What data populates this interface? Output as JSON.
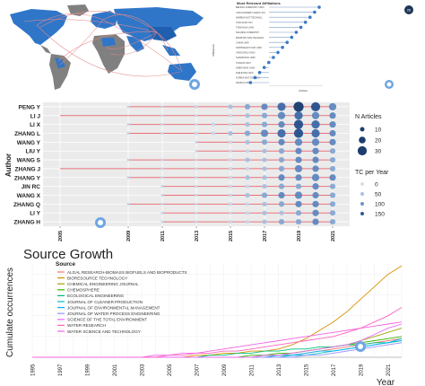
{
  "affiliations": {
    "title": "Most Relevant Affiliations",
    "ylabel": "Affiliations",
    "xlabel": "Articles",
    "badge": "26",
    "labels": [
      "BEIJING FORESTRY UNIV",
      "CHN ACADEMY AGRIC SCI",
      "HARBIN INST TECHNOL",
      "CHN ACAD SCI",
      "TSINGHUA UNIV",
      "NANJING FORESTRY",
      "MINISTRY ENV TECHNOL",
      "CHINA UNIV",
      "NORTHEAST FOR UNIV",
      "YANGZHOU UNIV",
      "SHANDONG UNIV",
      "TIANJIN UNIV",
      "SHENYANG UNIV",
      "ZHEJIANG UNIV",
      "KOREA INST ENV SCI",
      "NANKAI UNIV"
    ]
  },
  "chart_data": [
    {
      "type": "scatter",
      "title": "",
      "ylabel": "Author",
      "xlabel": "",
      "authors": [
        "PENG Y",
        "LI J",
        "LI X",
        "ZHANG L",
        "WANG Y",
        "LIU Y",
        "WANG S",
        "ZHANG J",
        "ZHANG Y",
        "JIN RC",
        "WANG X",
        "ZHANG Q",
        "LI Y",
        "ZHANG H"
      ],
      "x_ticks": [
        "2005",
        "2009",
        "2011",
        "2013",
        "2015",
        "2017",
        "2019",
        "2021"
      ],
      "xlim": [
        2004,
        2022
      ],
      "legend_size_title": "N Articles",
      "legend_size_values": [
        "10",
        "20",
        "30"
      ],
      "legend_color_title": "TC per Year",
      "legend_color_values": [
        "0",
        "50",
        "100",
        "150"
      ],
      "timeline_start": [
        2009,
        2005,
        2009,
        2009,
        2013,
        2013,
        2009,
        2005,
        2009,
        2011,
        2011,
        2009,
        2011,
        2011
      ],
      "points": [
        [
          [
            2009,
            2
          ],
          [
            2011,
            2
          ],
          [
            2013,
            3
          ],
          [
            2015,
            4
          ],
          [
            2016,
            5
          ],
          [
            2017,
            6
          ],
          [
            2018,
            8
          ],
          [
            2019,
            10
          ],
          [
            2020,
            9
          ],
          [
            2021,
            7
          ]
        ],
        [
          [
            2011,
            2
          ],
          [
            2013,
            2
          ],
          [
            2015,
            3
          ],
          [
            2016,
            4
          ],
          [
            2017,
            5
          ],
          [
            2018,
            7
          ],
          [
            2019,
            8
          ],
          [
            2020,
            7
          ],
          [
            2021,
            6
          ]
        ],
        [
          [
            2009,
            2
          ],
          [
            2011,
            2
          ],
          [
            2013,
            2
          ],
          [
            2014,
            3
          ],
          [
            2015,
            3
          ],
          [
            2016,
            4
          ],
          [
            2017,
            5
          ],
          [
            2018,
            6
          ],
          [
            2019,
            9
          ],
          [
            2020,
            8
          ],
          [
            2021,
            6
          ]
        ],
        [
          [
            2009,
            2
          ],
          [
            2011,
            2
          ],
          [
            2013,
            3
          ],
          [
            2014,
            3
          ],
          [
            2015,
            4
          ],
          [
            2016,
            5
          ],
          [
            2017,
            7
          ],
          [
            2018,
            8
          ],
          [
            2019,
            9
          ],
          [
            2020,
            8
          ],
          [
            2021,
            6
          ]
        ],
        [
          [
            2013,
            2
          ],
          [
            2015,
            3
          ],
          [
            2016,
            4
          ],
          [
            2017,
            5
          ],
          [
            2018,
            6
          ],
          [
            2019,
            7
          ],
          [
            2020,
            7
          ],
          [
            2021,
            6
          ]
        ],
        [
          [
            2013,
            2
          ],
          [
            2015,
            2
          ],
          [
            2016,
            3
          ],
          [
            2017,
            4
          ],
          [
            2018,
            5
          ],
          [
            2019,
            6
          ],
          [
            2020,
            6
          ],
          [
            2021,
            5
          ]
        ],
        [
          [
            2009,
            2
          ],
          [
            2011,
            2
          ],
          [
            2013,
            2
          ],
          [
            2015,
            3
          ],
          [
            2016,
            4
          ],
          [
            2017,
            4
          ],
          [
            2018,
            5
          ],
          [
            2019,
            6
          ],
          [
            2020,
            6
          ],
          [
            2021,
            5
          ]
        ],
        [
          [
            2011,
            2
          ],
          [
            2013,
            2
          ],
          [
            2015,
            3
          ],
          [
            2016,
            3
          ],
          [
            2017,
            4
          ],
          [
            2018,
            5
          ],
          [
            2019,
            7
          ],
          [
            2020,
            6
          ],
          [
            2021,
            5
          ]
        ],
        [
          [
            2009,
            2
          ],
          [
            2011,
            2
          ],
          [
            2013,
            2
          ],
          [
            2015,
            3
          ],
          [
            2016,
            4
          ],
          [
            2017,
            4
          ],
          [
            2018,
            6
          ],
          [
            2019,
            6
          ],
          [
            2020,
            7
          ],
          [
            2021,
            6
          ]
        ],
        [
          [
            2011,
            2
          ],
          [
            2013,
            2
          ],
          [
            2015,
            3
          ],
          [
            2016,
            3
          ],
          [
            2017,
            4
          ],
          [
            2018,
            5
          ],
          [
            2019,
            5
          ],
          [
            2020,
            6
          ],
          [
            2021,
            5
          ]
        ],
        [
          [
            2011,
            2
          ],
          [
            2013,
            2
          ],
          [
            2015,
            3
          ],
          [
            2016,
            4
          ],
          [
            2017,
            5
          ],
          [
            2018,
            6
          ],
          [
            2019,
            7
          ],
          [
            2020,
            6
          ],
          [
            2021,
            5
          ]
        ],
        [
          [
            2009,
            2
          ],
          [
            2011,
            2
          ],
          [
            2013,
            2
          ],
          [
            2015,
            3
          ],
          [
            2016,
            3
          ],
          [
            2017,
            4
          ],
          [
            2018,
            5
          ],
          [
            2019,
            6
          ],
          [
            2020,
            6
          ],
          [
            2021,
            5
          ]
        ],
        [
          [
            2011,
            2
          ],
          [
            2013,
            2
          ],
          [
            2015,
            2
          ],
          [
            2016,
            3
          ],
          [
            2017,
            4
          ],
          [
            2018,
            4
          ],
          [
            2019,
            5
          ],
          [
            2020,
            6
          ],
          [
            2021,
            5
          ]
        ],
        [
          [
            2011,
            2
          ],
          [
            2013,
            2
          ],
          [
            2015,
            3
          ],
          [
            2016,
            3
          ],
          [
            2017,
            4
          ],
          [
            2018,
            5
          ],
          [
            2019,
            5
          ],
          [
            2020,
            6
          ],
          [
            2021,
            5
          ]
        ]
      ]
    },
    {
      "type": "line",
      "title": "Source Growth",
      "xlabel": "Year",
      "ylabel": "Cumulate occurrences",
      "legend_title": "Source",
      "x": [
        1995,
        1996,
        1997,
        1998,
        1999,
        2000,
        2001,
        2002,
        2003,
        2004,
        2005,
        2006,
        2007,
        2008,
        2009,
        2010,
        2011,
        2012,
        2013,
        2014,
        2015,
        2016,
        2017,
        2018,
        2019,
        2020,
        2021,
        2022
      ],
      "x_ticks": [
        "1995",
        "1997",
        "1999",
        "2001",
        "2003",
        "2005",
        "2007",
        "2009",
        "2011",
        "2013",
        "2015",
        "2017",
        "2019",
        "2021"
      ],
      "ylim": [
        0,
        45
      ],
      "series": [
        {
          "name": "ALGAL RESEARCH-BIOMASS BIOFUELS AND BIOPRODUCTS",
          "color": "#f8766d",
          "values": [
            0,
            0,
            0,
            0,
            0,
            0,
            0,
            0,
            0,
            0,
            0,
            0,
            0,
            0,
            0,
            0,
            0,
            0,
            1,
            1,
            2,
            3,
            4,
            5,
            6,
            7,
            8,
            9
          ]
        },
        {
          "name": "BIORESOURCE TECHNOLOGY",
          "color": "#d89000",
          "values": [
            0,
            0,
            0,
            0,
            0,
            0,
            0,
            0,
            0,
            0,
            0,
            0,
            1,
            1,
            2,
            2,
            3,
            3,
            4,
            6,
            9,
            13,
            17,
            22,
            28,
            34,
            40,
            44
          ]
        },
        {
          "name": "CHEMICAL ENGINEERING JOURNAL",
          "color": "#a3a500",
          "values": [
            0,
            0,
            0,
            0,
            0,
            0,
            0,
            0,
            0,
            0,
            0,
            0,
            0,
            0,
            0,
            0,
            0,
            1,
            1,
            2,
            3,
            4,
            5,
            6,
            8,
            10,
            12,
            14
          ]
        },
        {
          "name": "CHEMOSPHERE",
          "color": "#39b600",
          "values": [
            0,
            0,
            0,
            0,
            0,
            0,
            0,
            0,
            0,
            0,
            0,
            0,
            0,
            0,
            0,
            0,
            1,
            1,
            2,
            2,
            3,
            4,
            5,
            6,
            7,
            8,
            9,
            10
          ]
        },
        {
          "name": "ECOLOGICAL ENGINEERING",
          "color": "#00bf7d",
          "values": [
            0,
            0,
            0,
            0,
            0,
            0,
            0,
            0,
            0,
            0,
            0,
            0,
            0,
            1,
            1,
            2,
            2,
            3,
            3,
            4,
            4,
            5,
            5,
            6,
            6,
            7,
            7,
            8
          ]
        },
        {
          "name": "JOURNAL OF CLEANER PRODUCTION",
          "color": "#00bfc4",
          "values": [
            0,
            0,
            0,
            0,
            0,
            0,
            0,
            0,
            0,
            0,
            0,
            0,
            0,
            0,
            0,
            0,
            0,
            0,
            0,
            1,
            1,
            2,
            3,
            4,
            5,
            6,
            7,
            8
          ]
        },
        {
          "name": "JOURNAL OF ENVIRONMENTAL MANAGEMENT",
          "color": "#00b0f6",
          "values": [
            0,
            0,
            0,
            0,
            0,
            0,
            0,
            0,
            0,
            0,
            0,
            0,
            0,
            0,
            0,
            0,
            0,
            0,
            1,
            1,
            2,
            3,
            3,
            4,
            5,
            6,
            7,
            9
          ]
        },
        {
          "name": "JOURNAL OF WATER PROCESS ENGINEERING",
          "color": "#9590ff",
          "values": [
            0,
            0,
            0,
            0,
            0,
            0,
            0,
            0,
            0,
            0,
            0,
            0,
            0,
            0,
            0,
            0,
            0,
            0,
            0,
            0,
            1,
            1,
            2,
            3,
            4,
            5,
            6,
            7
          ]
        },
        {
          "name": "SCIENCE OF THE TOTAL ENVIRONMENT",
          "color": "#e76bf3",
          "values": [
            0,
            0,
            0,
            0,
            0,
            0,
            0,
            0,
            0,
            0,
            0,
            0,
            0,
            0,
            0,
            0,
            0,
            1,
            1,
            2,
            3,
            4,
            5,
            6,
            8,
            11,
            14,
            16
          ]
        },
        {
          "name": "WATER RESEARCH",
          "color": "#ff62bc",
          "values": [
            0,
            0,
            0,
            0,
            0,
            0,
            0,
            0,
            0,
            0,
            1,
            1,
            2,
            2,
            3,
            3,
            4,
            5,
            6,
            7,
            8,
            9,
            10,
            12,
            14,
            17,
            20,
            24
          ]
        },
        {
          "name": "WATER SCIENCE AND TECHNOLOGY",
          "color": "#f564e3",
          "values": [
            0,
            0,
            0,
            0,
            0,
            0,
            0,
            0,
            0,
            1,
            1,
            2,
            2,
            3,
            4,
            5,
            6,
            7,
            8,
            9,
            10,
            11,
            12,
            13,
            14,
            15,
            16,
            17
          ]
        }
      ]
    }
  ]
}
